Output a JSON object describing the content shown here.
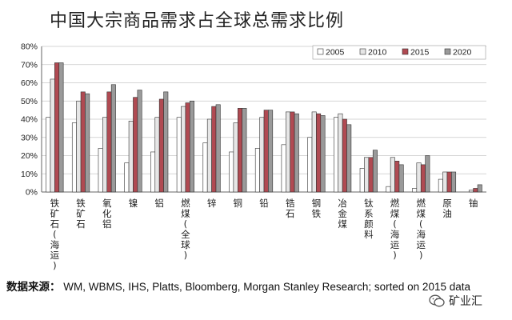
{
  "chart_data": {
    "type": "bar",
    "title": "中国大宗商品需求占全球总需求比例",
    "categories": [
      "铁矿石(海运)",
      "铁矿石",
      "氧化铝",
      "镍",
      "铝",
      "燃煤(全球)",
      "锌",
      "铜",
      "铅",
      "锆石",
      "钢铁",
      "冶金煤",
      "钛系颜料",
      "燃煤(海运)",
      "燃煤(海运)",
      "原油",
      "铀"
    ],
    "series": [
      {
        "name": "2005",
        "color": "#ffffff",
        "values": [
          41,
          38,
          24,
          16,
          22,
          41,
          27,
          22,
          24,
          26,
          30,
          41,
          13,
          3,
          2,
          7,
          0
        ]
      },
      {
        "name": "2010",
        "color": "#e6e6e6",
        "values": [
          62,
          50,
          41,
          39,
          41,
          47,
          40,
          38,
          41,
          44,
          44,
          43,
          19,
          19,
          16,
          11,
          1
        ]
      },
      {
        "name": "2015",
        "color": "#b04a52",
        "values": [
          71,
          55,
          55,
          52,
          51,
          49,
          47,
          46,
          45,
          44,
          43,
          40,
          19,
          17,
          15,
          11,
          2
        ]
      },
      {
        "name": "2020",
        "color": "#9a9a9a",
        "values": [
          71,
          54,
          59,
          56,
          55,
          50,
          48,
          46,
          45,
          43,
          42,
          37,
          23,
          15,
          20,
          11,
          4
        ]
      }
    ],
    "ylim": [
      0,
      80
    ],
    "yticks": [
      0,
      10,
      20,
      30,
      40,
      50,
      60,
      70,
      80
    ],
    "ytick_suffix": "%",
    "legend_position": "top-right",
    "grid": true
  },
  "source": {
    "label": "数据来源：",
    "text": "WM, WBMS, IHS, Platts, Bloomberg, Morgan Stanley Research; sorted on 2015 data"
  },
  "wechat": {
    "icon": "wechat-icon",
    "label": "矿业汇"
  }
}
